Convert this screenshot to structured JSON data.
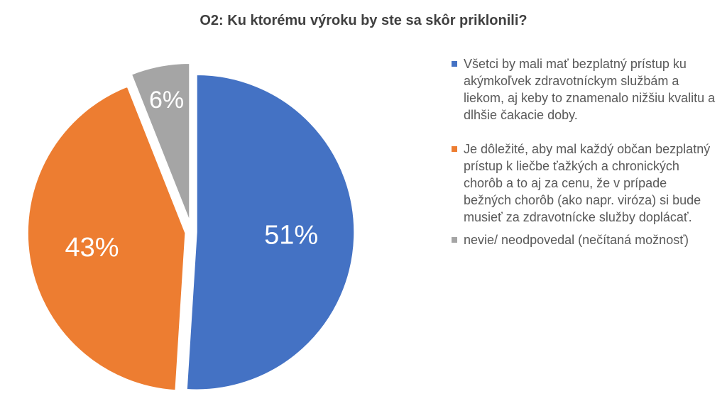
{
  "chart_data": {
    "type": "pie",
    "title": "O2: Ku ktorému výroku by ste sa skôr priklonili?",
    "legend_position": "right",
    "slices": [
      {
        "name": "Všetci by mali mať bezplatný prístup ku akýmkoľvek zdravotníckym službám a liekom, aj keby to znamenalo nižšiu kvalitu a dlhšie čakacie doby.",
        "value": 51,
        "label": "51%",
        "color": "#4472C4"
      },
      {
        "name": "Je dôležité, aby mal každý občan bezplatný prístup k liečbe ťažkých a chronických chorôb a to aj za cenu, že v prípade bežných chorôb (ako napr. viróza) si bude musieť za zdravotnícke služby doplácať.",
        "value": 43,
        "label": "43%",
        "color": "#ED7D31"
      },
      {
        "name": "nevie/ neodpovedal (nečítaná možnosť)",
        "value": 6,
        "label": "6%",
        "color": "#A5A5A5"
      }
    ]
  }
}
